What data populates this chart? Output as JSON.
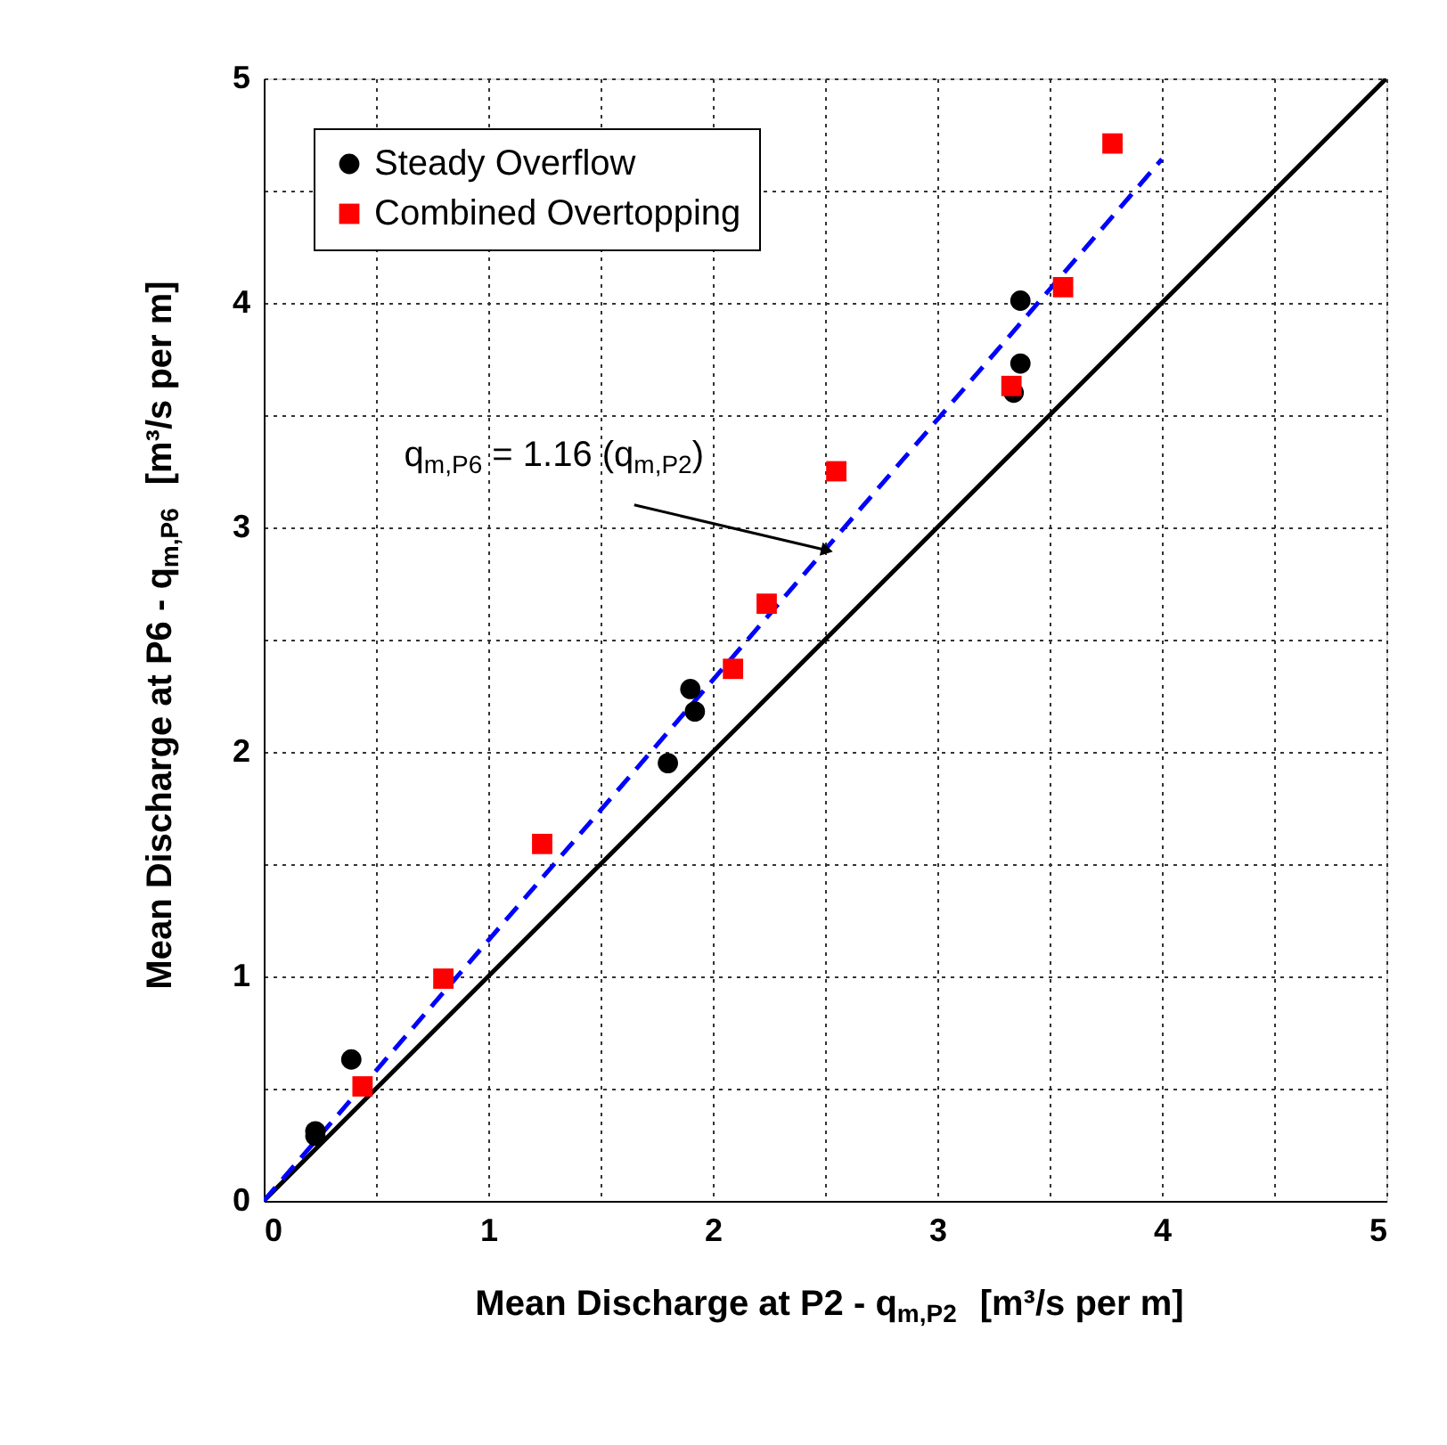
{
  "chart_data": {
    "type": "scatter",
    "xlabel": "Mean Discharge at P2 - q$_{m,P2}$  [m³/s per m]",
    "ylabel": "Mean Discharge at P6 - q$_{m,P6}$  [m³/s per m]",
    "xlim": [
      0,
      5
    ],
    "ylim": [
      0,
      5
    ],
    "xticks": [
      0,
      {
        "value": 0.5,
        "label": null
      },
      1,
      {
        "value": 1.5,
        "label": null
      },
      2,
      {
        "value": 2.5,
        "label": null
      },
      3,
      {
        "value": 3.5,
        "label": null
      },
      4,
      {
        "value": 4.5,
        "label": null
      },
      5
    ],
    "yticks": [
      0,
      {
        "value": 0.5,
        "label": null
      },
      1,
      {
        "value": 1.5,
        "label": null
      },
      2,
      {
        "value": 2.5,
        "label": null
      },
      3,
      {
        "value": 3.5,
        "label": null
      },
      4,
      {
        "value": 4.5,
        "label": null
      },
      5
    ],
    "grid": true,
    "legend": "top left",
    "annotations": [
      {
        "text": "q$_{m,P6}$ = 1.16 (q$_{m,P2}$)",
        "x": 2.5,
        "y": 2.9
      }
    ],
    "series": [
      {
        "name": "Steady Overflow",
        "marker": "circle",
        "color": "#000000",
        "x": [
          0.23,
          0.23,
          0.39,
          1.8,
          1.9,
          1.92,
          3.34,
          3.37,
          3.37
        ],
        "values": [
          0.31,
          0.29,
          0.63,
          1.95,
          2.28,
          2.18,
          3.6,
          3.73,
          4.01
        ]
      },
      {
        "name": "Combined Overtopping",
        "marker": "square",
        "color": "#ff0000",
        "x": [
          0.44,
          0.8,
          1.24,
          2.09,
          2.24,
          2.55,
          3.33,
          3.56,
          3.78
        ],
        "values": [
          0.51,
          0.99,
          1.59,
          2.37,
          2.66,
          3.25,
          3.63,
          4.07,
          4.71
        ]
      },
      {
        "type": "line",
        "color": "#000000",
        "line_style": "solid",
        "marker": "none",
        "x": [
          0,
          5
        ],
        "values": [
          0,
          5
        ]
      },
      {
        "type": "line",
        "color": "#0000ff",
        "line_style": "dashed",
        "marker": "none",
        "x": [
          0,
          4
        ],
        "values": [
          0,
          4.64
        ]
      }
    ]
  }
}
